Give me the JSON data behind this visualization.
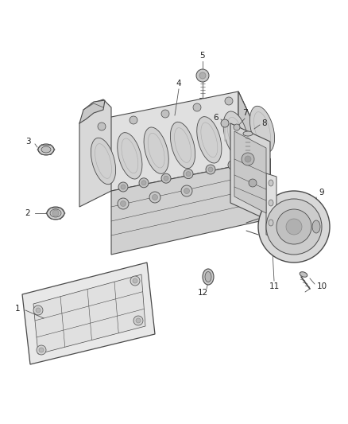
{
  "background_color": "#ffffff",
  "line_color": "#4a4a4a",
  "light_gray": "#d8d8d8",
  "mid_gray": "#b8b8b8",
  "dark_gray": "#888888",
  "fig_width": 4.38,
  "fig_height": 5.33,
  "dpi": 100,
  "parts": [
    "1",
    "2",
    "3",
    "4",
    "5",
    "6",
    "7",
    "8",
    "9",
    "10",
    "11",
    "12"
  ]
}
